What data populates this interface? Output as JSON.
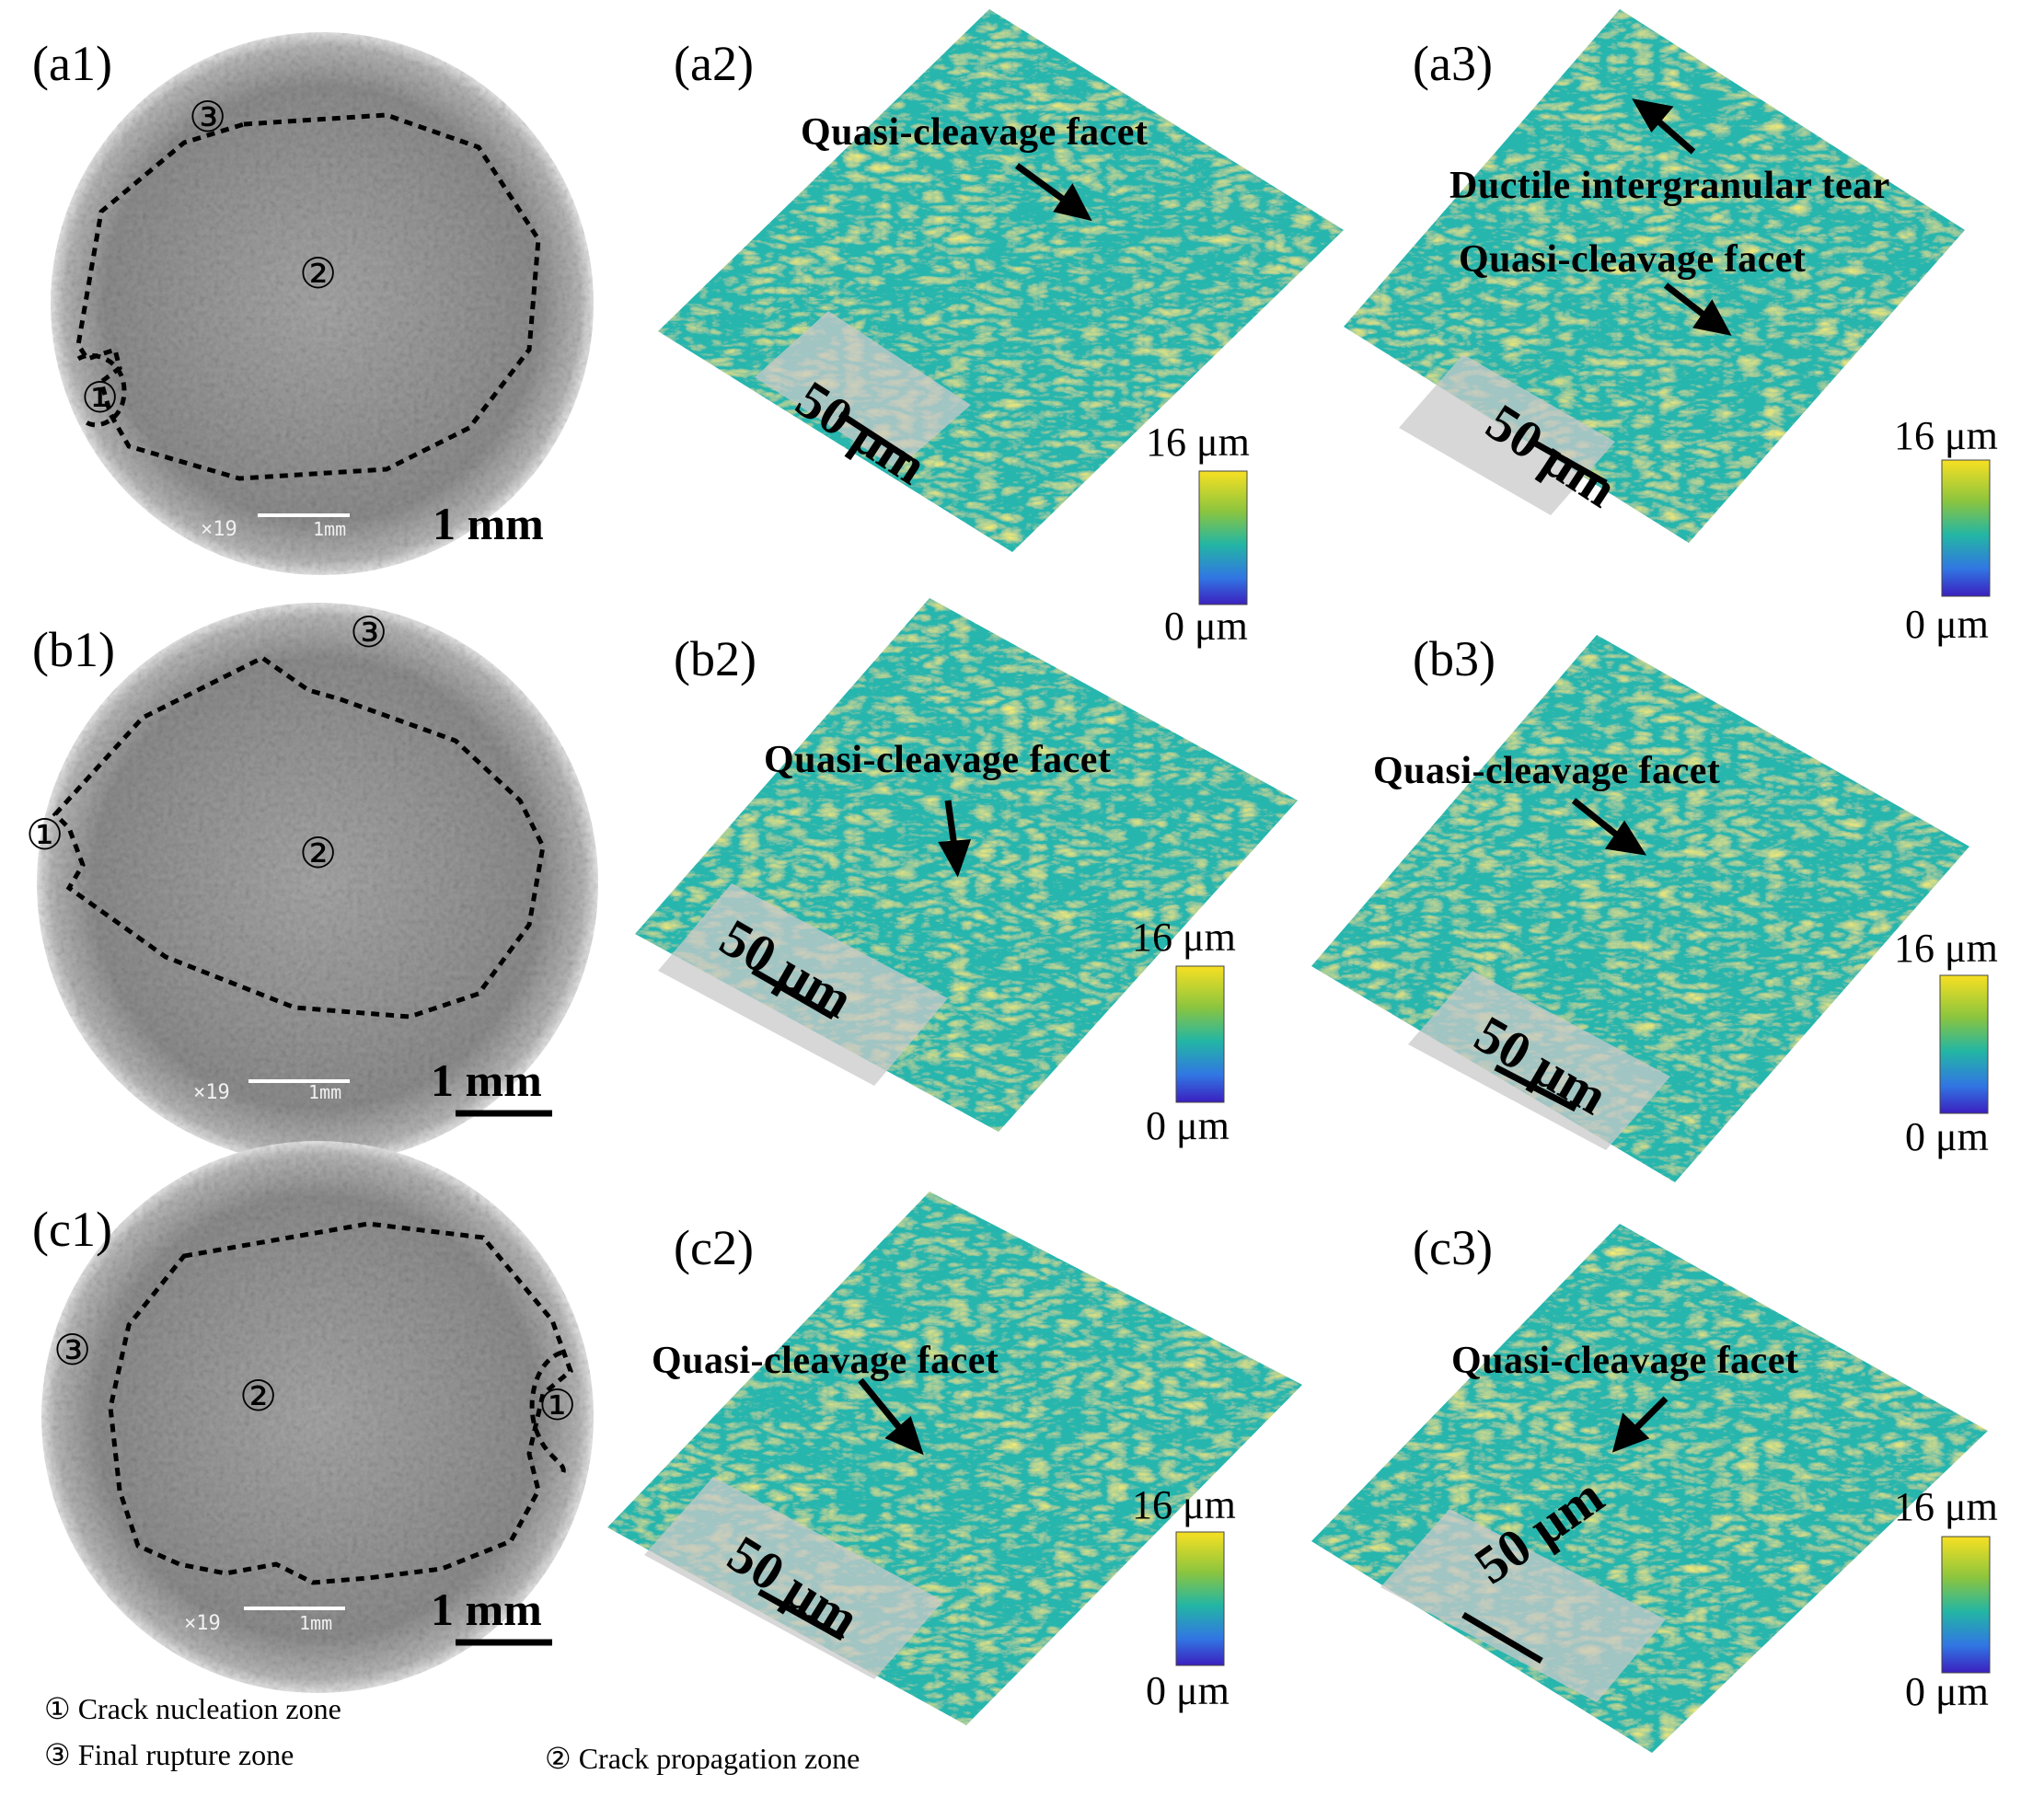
{
  "colors": {
    "map_base": "#26b6ad",
    "map_low": "#3a5fe0",
    "map_high": "#f2d624",
    "sem_base": "#9a9a9a",
    "sem_edge": "#e6e6e6"
  },
  "panels": {
    "a1": "(a1)",
    "a2": "(a2)",
    "a3": "(a3)",
    "b1": "(b1)",
    "b2": "(b2)",
    "b3": "(b3)",
    "c1": "(c1)",
    "c2": "(c2)",
    "c3": "(c3)"
  },
  "annotations": {
    "quasi": "Quasi-cleavage facet",
    "ductile": "Ductile intergranular tear"
  },
  "scalebar": {
    "micro": "50 μm",
    "macro": "1 mm",
    "sem_tag": "×19",
    "sem_unit": "1mm"
  },
  "colorbar": {
    "max": "16 μm",
    "min": "0 μm"
  },
  "zones": {
    "z1_num": "①",
    "z2_num": "②",
    "z3_num": "③"
  },
  "legend": {
    "z1": "① Crack nucleation zone",
    "z3": "③ Final rupture zone",
    "z2": "② Crack propagation zone"
  }
}
